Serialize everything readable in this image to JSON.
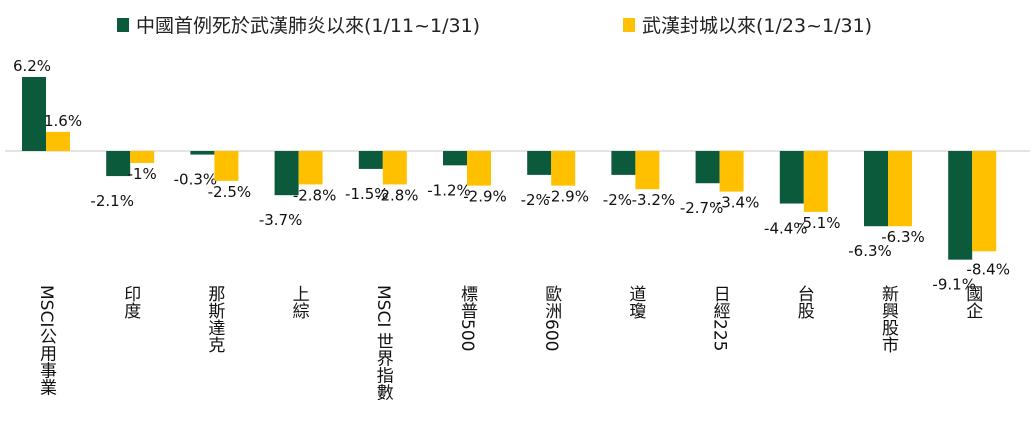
{
  "chart_data": {
    "type": "bar",
    "categories": [
      "MSCI公用事業",
      "印度",
      "那斯達克",
      "上綜",
      "MSCI 世界指數",
      "標普500",
      "歐洲600",
      "道瓊",
      "日經225",
      "台股",
      "新興股市",
      "國企"
    ],
    "series": [
      {
        "name": "中國首例死於武漢肺炎以來(1/11~1/31)",
        "color": "#0b5a3c",
        "values": [
          6.2,
          -2.1,
          -0.3,
          -3.7,
          -1.5,
          -1.2,
          -2.0,
          -2.0,
          -2.7,
          -4.4,
          -6.3,
          -9.1
        ],
        "labels": [
          "6.2%",
          "-2.1%",
          "-0.3%",
          "-3.7%",
          "-1.5%",
          "-1.2%",
          "-2%",
          "-2%",
          "-2.7%",
          "-4.4%",
          "-6.3%",
          "-9.1%"
        ]
      },
      {
        "name": "武漢封城以來(1/23~1/31)",
        "color": "#ffc000",
        "values": [
          1.6,
          -1.0,
          -2.5,
          -2.8,
          -2.8,
          -2.9,
          -2.9,
          -3.2,
          -3.4,
          -5.1,
          -6.3,
          -8.4
        ],
        "labels": [
          "1.6%",
          "-1%",
          "-2.5%",
          "-2.8%",
          "-2.8%",
          "-2.9%",
          "-2.9%",
          "-3.2%",
          "-3.4%",
          "-5.1%",
          "-6.3%",
          "-8.4%"
        ]
      }
    ],
    "ylim": [
      -9.1,
      6.2
    ],
    "grid": false,
    "legend_position": "top"
  }
}
